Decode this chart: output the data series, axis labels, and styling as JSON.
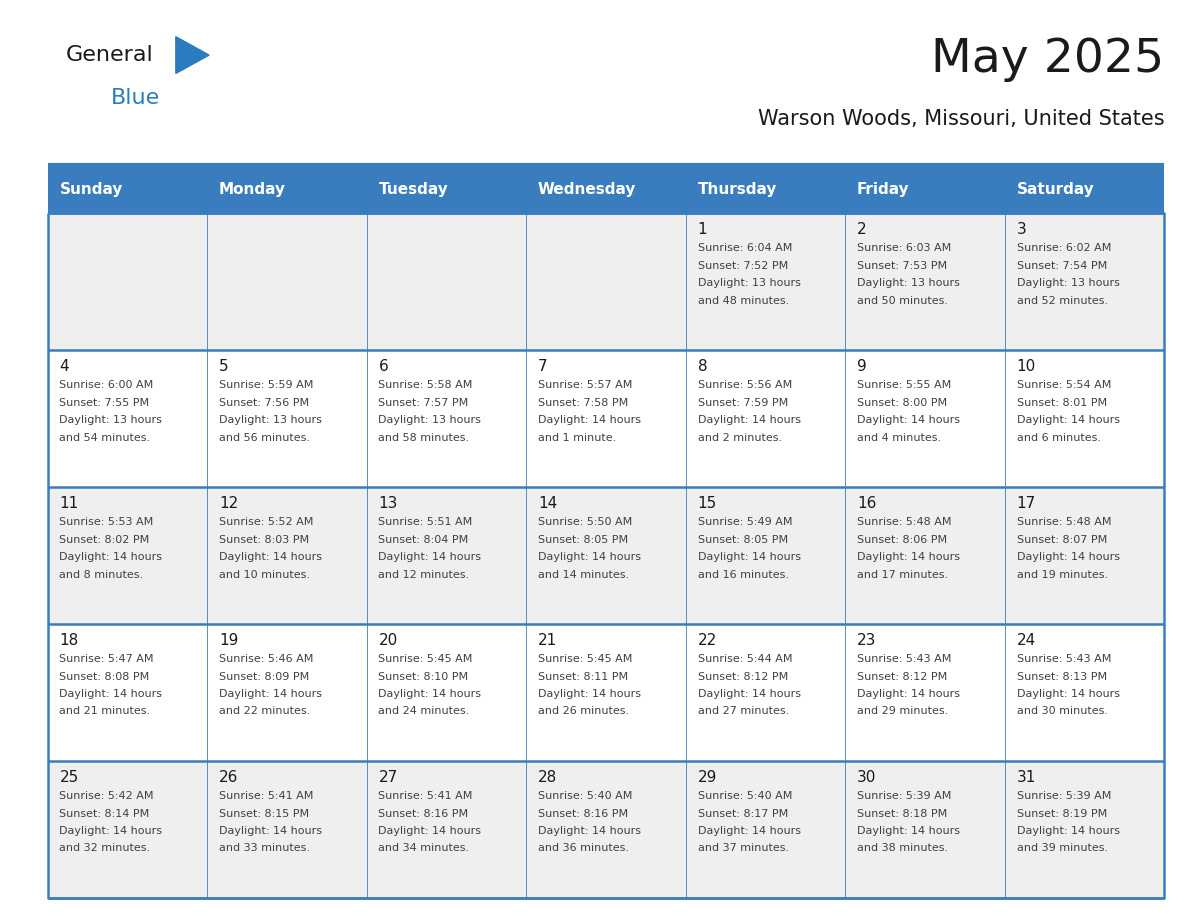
{
  "title": "May 2025",
  "subtitle": "Warson Woods, Missouri, United States",
  "days_of_week": [
    "Sunday",
    "Monday",
    "Tuesday",
    "Wednesday",
    "Thursday",
    "Friday",
    "Saturday"
  ],
  "header_bg": "#3a7dbf",
  "header_text": "#ffffff",
  "cell_bg_light": "#efefef",
  "cell_bg_white": "#ffffff",
  "border_color": "#3a7dbf",
  "text_color": "#333333",
  "calendar_data": [
    [
      null,
      null,
      null,
      null,
      {
        "day": 1,
        "sunrise": "6:04 AM",
        "sunset": "7:52 PM",
        "daylight_line1": "Daylight: 13 hours",
        "daylight_line2": "and 48 minutes."
      },
      {
        "day": 2,
        "sunrise": "6:03 AM",
        "sunset": "7:53 PM",
        "daylight_line1": "Daylight: 13 hours",
        "daylight_line2": "and 50 minutes."
      },
      {
        "day": 3,
        "sunrise": "6:02 AM",
        "sunset": "7:54 PM",
        "daylight_line1": "Daylight: 13 hours",
        "daylight_line2": "and 52 minutes."
      }
    ],
    [
      {
        "day": 4,
        "sunrise": "6:00 AM",
        "sunset": "7:55 PM",
        "daylight_line1": "Daylight: 13 hours",
        "daylight_line2": "and 54 minutes."
      },
      {
        "day": 5,
        "sunrise": "5:59 AM",
        "sunset": "7:56 PM",
        "daylight_line1": "Daylight: 13 hours",
        "daylight_line2": "and 56 minutes."
      },
      {
        "day": 6,
        "sunrise": "5:58 AM",
        "sunset": "7:57 PM",
        "daylight_line1": "Daylight: 13 hours",
        "daylight_line2": "and 58 minutes."
      },
      {
        "day": 7,
        "sunrise": "5:57 AM",
        "sunset": "7:58 PM",
        "daylight_line1": "Daylight: 14 hours",
        "daylight_line2": "and 1 minute."
      },
      {
        "day": 8,
        "sunrise": "5:56 AM",
        "sunset": "7:59 PM",
        "daylight_line1": "Daylight: 14 hours",
        "daylight_line2": "and 2 minutes."
      },
      {
        "day": 9,
        "sunrise": "5:55 AM",
        "sunset": "8:00 PM",
        "daylight_line1": "Daylight: 14 hours",
        "daylight_line2": "and 4 minutes."
      },
      {
        "day": 10,
        "sunrise": "5:54 AM",
        "sunset": "8:01 PM",
        "daylight_line1": "Daylight: 14 hours",
        "daylight_line2": "and 6 minutes."
      }
    ],
    [
      {
        "day": 11,
        "sunrise": "5:53 AM",
        "sunset": "8:02 PM",
        "daylight_line1": "Daylight: 14 hours",
        "daylight_line2": "and 8 minutes."
      },
      {
        "day": 12,
        "sunrise": "5:52 AM",
        "sunset": "8:03 PM",
        "daylight_line1": "Daylight: 14 hours",
        "daylight_line2": "and 10 minutes."
      },
      {
        "day": 13,
        "sunrise": "5:51 AM",
        "sunset": "8:04 PM",
        "daylight_line1": "Daylight: 14 hours",
        "daylight_line2": "and 12 minutes."
      },
      {
        "day": 14,
        "sunrise": "5:50 AM",
        "sunset": "8:05 PM",
        "daylight_line1": "Daylight: 14 hours",
        "daylight_line2": "and 14 minutes."
      },
      {
        "day": 15,
        "sunrise": "5:49 AM",
        "sunset": "8:05 PM",
        "daylight_line1": "Daylight: 14 hours",
        "daylight_line2": "and 16 minutes."
      },
      {
        "day": 16,
        "sunrise": "5:48 AM",
        "sunset": "8:06 PM",
        "daylight_line1": "Daylight: 14 hours",
        "daylight_line2": "and 17 minutes."
      },
      {
        "day": 17,
        "sunrise": "5:48 AM",
        "sunset": "8:07 PM",
        "daylight_line1": "Daylight: 14 hours",
        "daylight_line2": "and 19 minutes."
      }
    ],
    [
      {
        "day": 18,
        "sunrise": "5:47 AM",
        "sunset": "8:08 PM",
        "daylight_line1": "Daylight: 14 hours",
        "daylight_line2": "and 21 minutes."
      },
      {
        "day": 19,
        "sunrise": "5:46 AM",
        "sunset": "8:09 PM",
        "daylight_line1": "Daylight: 14 hours",
        "daylight_line2": "and 22 minutes."
      },
      {
        "day": 20,
        "sunrise": "5:45 AM",
        "sunset": "8:10 PM",
        "daylight_line1": "Daylight: 14 hours",
        "daylight_line2": "and 24 minutes."
      },
      {
        "day": 21,
        "sunrise": "5:45 AM",
        "sunset": "8:11 PM",
        "daylight_line1": "Daylight: 14 hours",
        "daylight_line2": "and 26 minutes."
      },
      {
        "day": 22,
        "sunrise": "5:44 AM",
        "sunset": "8:12 PM",
        "daylight_line1": "Daylight: 14 hours",
        "daylight_line2": "and 27 minutes."
      },
      {
        "day": 23,
        "sunrise": "5:43 AM",
        "sunset": "8:12 PM",
        "daylight_line1": "Daylight: 14 hours",
        "daylight_line2": "and 29 minutes."
      },
      {
        "day": 24,
        "sunrise": "5:43 AM",
        "sunset": "8:13 PM",
        "daylight_line1": "Daylight: 14 hours",
        "daylight_line2": "and 30 minutes."
      }
    ],
    [
      {
        "day": 25,
        "sunrise": "5:42 AM",
        "sunset": "8:14 PM",
        "daylight_line1": "Daylight: 14 hours",
        "daylight_line2": "and 32 minutes."
      },
      {
        "day": 26,
        "sunrise": "5:41 AM",
        "sunset": "8:15 PM",
        "daylight_line1": "Daylight: 14 hours",
        "daylight_line2": "and 33 minutes."
      },
      {
        "day": 27,
        "sunrise": "5:41 AM",
        "sunset": "8:16 PM",
        "daylight_line1": "Daylight: 14 hours",
        "daylight_line2": "and 34 minutes."
      },
      {
        "day": 28,
        "sunrise": "5:40 AM",
        "sunset": "8:16 PM",
        "daylight_line1": "Daylight: 14 hours",
        "daylight_line2": "and 36 minutes."
      },
      {
        "day": 29,
        "sunrise": "5:40 AM",
        "sunset": "8:17 PM",
        "daylight_line1": "Daylight: 14 hours",
        "daylight_line2": "and 37 minutes."
      },
      {
        "day": 30,
        "sunrise": "5:39 AM",
        "sunset": "8:18 PM",
        "daylight_line1": "Daylight: 14 hours",
        "daylight_line2": "and 38 minutes."
      },
      {
        "day": 31,
        "sunrise": "5:39 AM",
        "sunset": "8:19 PM",
        "daylight_line1": "Daylight: 14 hours",
        "daylight_line2": "and 39 minutes."
      }
    ]
  ],
  "logo_text_general": "General",
  "logo_text_blue": "Blue",
  "logo_color_general": "#1a1a1a",
  "logo_color_blue": "#2b7bbf",
  "logo_triangle_color": "#2b7bbf",
  "fig_width": 11.88,
  "fig_height": 9.18
}
